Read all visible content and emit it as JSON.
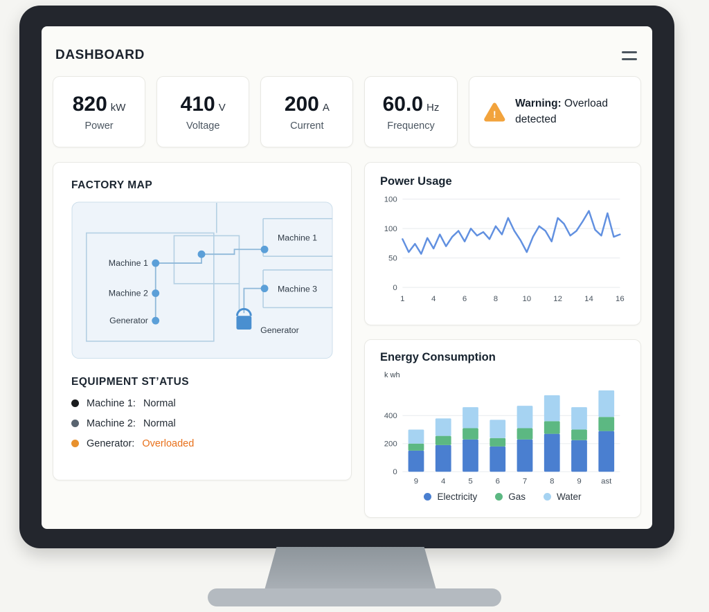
{
  "header": {
    "title": "DASHBOARD"
  },
  "stats": [
    {
      "value": "820",
      "unit": "kW",
      "label": "Power"
    },
    {
      "value": "410",
      "unit": "V",
      "label": "Voltage"
    },
    {
      "value": "200",
      "unit": "A",
      "label": "Current"
    },
    {
      "value": "60.0",
      "unit": "Hz",
      "label": "Frequency"
    }
  ],
  "warning": {
    "icon": "warning-triangle-icon",
    "bold": "Warning:",
    "text": " Overload detected",
    "icon_color": "#f2a33c"
  },
  "factory_map": {
    "title": "FACTORY MAP",
    "labels": {
      "left_machine1": "Machine 1",
      "left_machine2": "Machine 2",
      "left_generator": "Generator",
      "right_machine1": "Machine 1",
      "right_machine3": "Machine 3",
      "plug_generator": "Generator"
    },
    "colors": {
      "panel": "#eef4fa",
      "wall": "#b3cfe3",
      "node": "#5b9fd8",
      "plug": "#4a8fd0"
    }
  },
  "equipment_status": {
    "title": "EQUIPMENT ST’ATUS",
    "items": [
      {
        "label": "Machine 1:",
        "status": "Normal",
        "dot_color": "#1a1c1e",
        "status_color": "#232b34"
      },
      {
        "label": "Machine 2:",
        "status": "Normal",
        "dot_color": "#596470",
        "status_color": "#232b34"
      },
      {
        "label": "Generator:",
        "status": "Overloaded",
        "dot_color": "#e8912d",
        "status_color": "#e8701a"
      }
    ]
  },
  "chart_data": [
    {
      "type": "line",
      "title": "Power Usage",
      "x_ticks": [
        "1",
        "4",
        "6",
        "8",
        "10",
        "12",
        "14",
        "16"
      ],
      "y_ticks": [
        "100",
        "100",
        "50",
        "0"
      ],
      "ylim": [
        0,
        150
      ],
      "line_color": "#6190e0",
      "values": [
        82,
        60,
        74,
        57,
        84,
        66,
        90,
        70,
        86,
        96,
        78,
        100,
        88,
        94,
        82,
        104,
        90,
        118,
        96,
        80,
        60,
        86,
        104,
        96,
        78,
        118,
        108,
        88,
        96,
        112,
        130,
        98,
        88,
        126,
        86,
        90
      ]
    },
    {
      "type": "bar",
      "title": "Energy Consumption",
      "ylabel": "k wh",
      "categories": [
        "9",
        "4",
        "5",
        "6",
        "7",
        "8",
        "9",
        "ast"
      ],
      "y_ticks": [
        "400",
        "200",
        "0"
      ],
      "ylim": [
        0,
        620
      ],
      "series": [
        {
          "name": "Electricity",
          "color": "#4a7fd0",
          "values": [
            150,
            190,
            230,
            180,
            230,
            270,
            225,
            290
          ]
        },
        {
          "name": "Gas",
          "color": "#5cb882",
          "values": [
            50,
            65,
            80,
            60,
            80,
            90,
            75,
            100
          ]
        },
        {
          "name": "Water",
          "color": "#a6d3f2",
          "values": [
            100,
            125,
            150,
            130,
            160,
            185,
            160,
            190
          ]
        }
      ],
      "legend_position": "bottom"
    }
  ]
}
